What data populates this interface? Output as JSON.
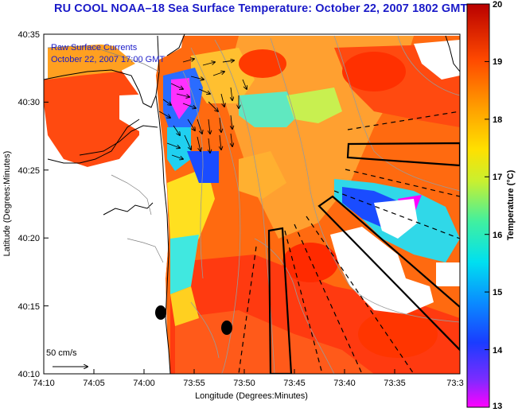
{
  "title": "RU COOL  NOAA–18  Sea Surface Temperature:  October 22, 2007 1802 GMT",
  "overlay": {
    "line1": "Raw Surface Currents",
    "line2": "October 22, 2007 17:00 GMT"
  },
  "scale_label": "50 cm/s",
  "axes": {
    "xlabel": "Longitude (Degrees:Minutes)",
    "ylabel": "Latitude (Degrees:Minutes)",
    "x_ticks": [
      "74:10",
      "74:05",
      "74:00",
      "73:55",
      "73:50",
      "73:45",
      "73:40",
      "73:35",
      "73:3"
    ],
    "y_ticks": [
      "40:35",
      "40:30",
      "40:25",
      "40:20",
      "40:15",
      "40:10"
    ]
  },
  "colorbar": {
    "label": "Temperature (°C)",
    "min": 13,
    "max": 20,
    "ticks": [
      "20",
      "19",
      "18",
      "17",
      "16",
      "15",
      "14",
      "13"
    ]
  }
}
